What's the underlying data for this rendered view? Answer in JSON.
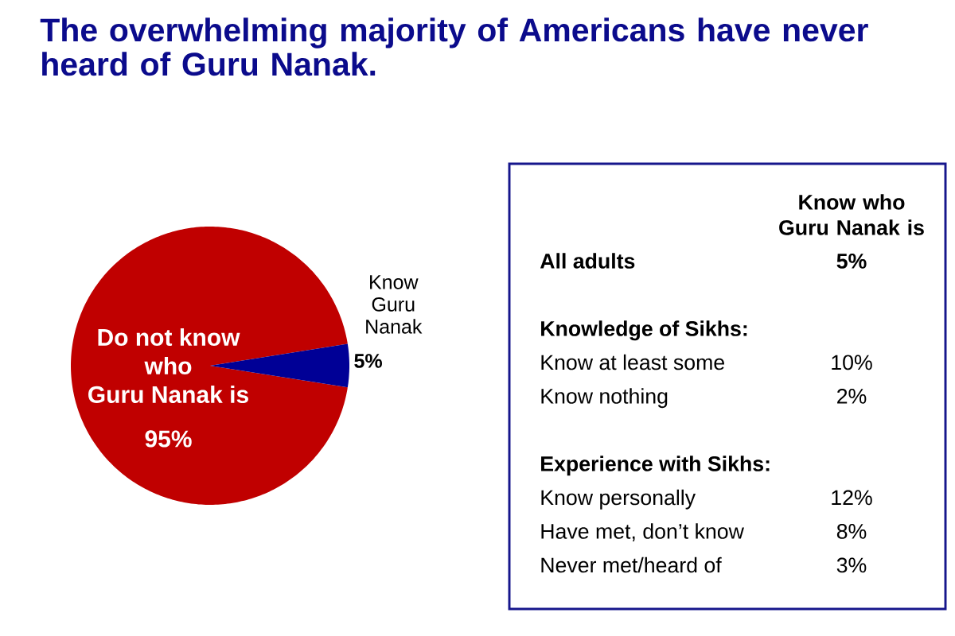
{
  "chart_data": [
    {
      "type": "pie",
      "title": "The overwhelming majority of Americans have never heard of Guru Nanak.",
      "categories": [
        "Do not know who Guru Nanak is",
        "Know Guru Nanak"
      ],
      "values": [
        95,
        5
      ],
      "colors": [
        "#c00000",
        "#000096"
      ],
      "value_labels": [
        "95%",
        "5%"
      ]
    },
    {
      "type": "other",
      "title": "Know who Guru Nanak is",
      "categories": [
        "All adults",
        null,
        "Know at least some",
        "Know nothing",
        null,
        "Know personally",
        "Have met, don’t know",
        "Never met/heard of"
      ],
      "values": [
        5,
        null,
        10,
        2,
        null,
        12,
        8,
        3
      ],
      "value_labels": [
        "5%",
        null,
        "10%",
        "2%",
        null,
        "12%",
        "8%",
        "3%"
      ],
      "annotations": [
        "Knowledge of Sikhs:",
        "Experience with Sikhs:"
      ]
    }
  ]
}
